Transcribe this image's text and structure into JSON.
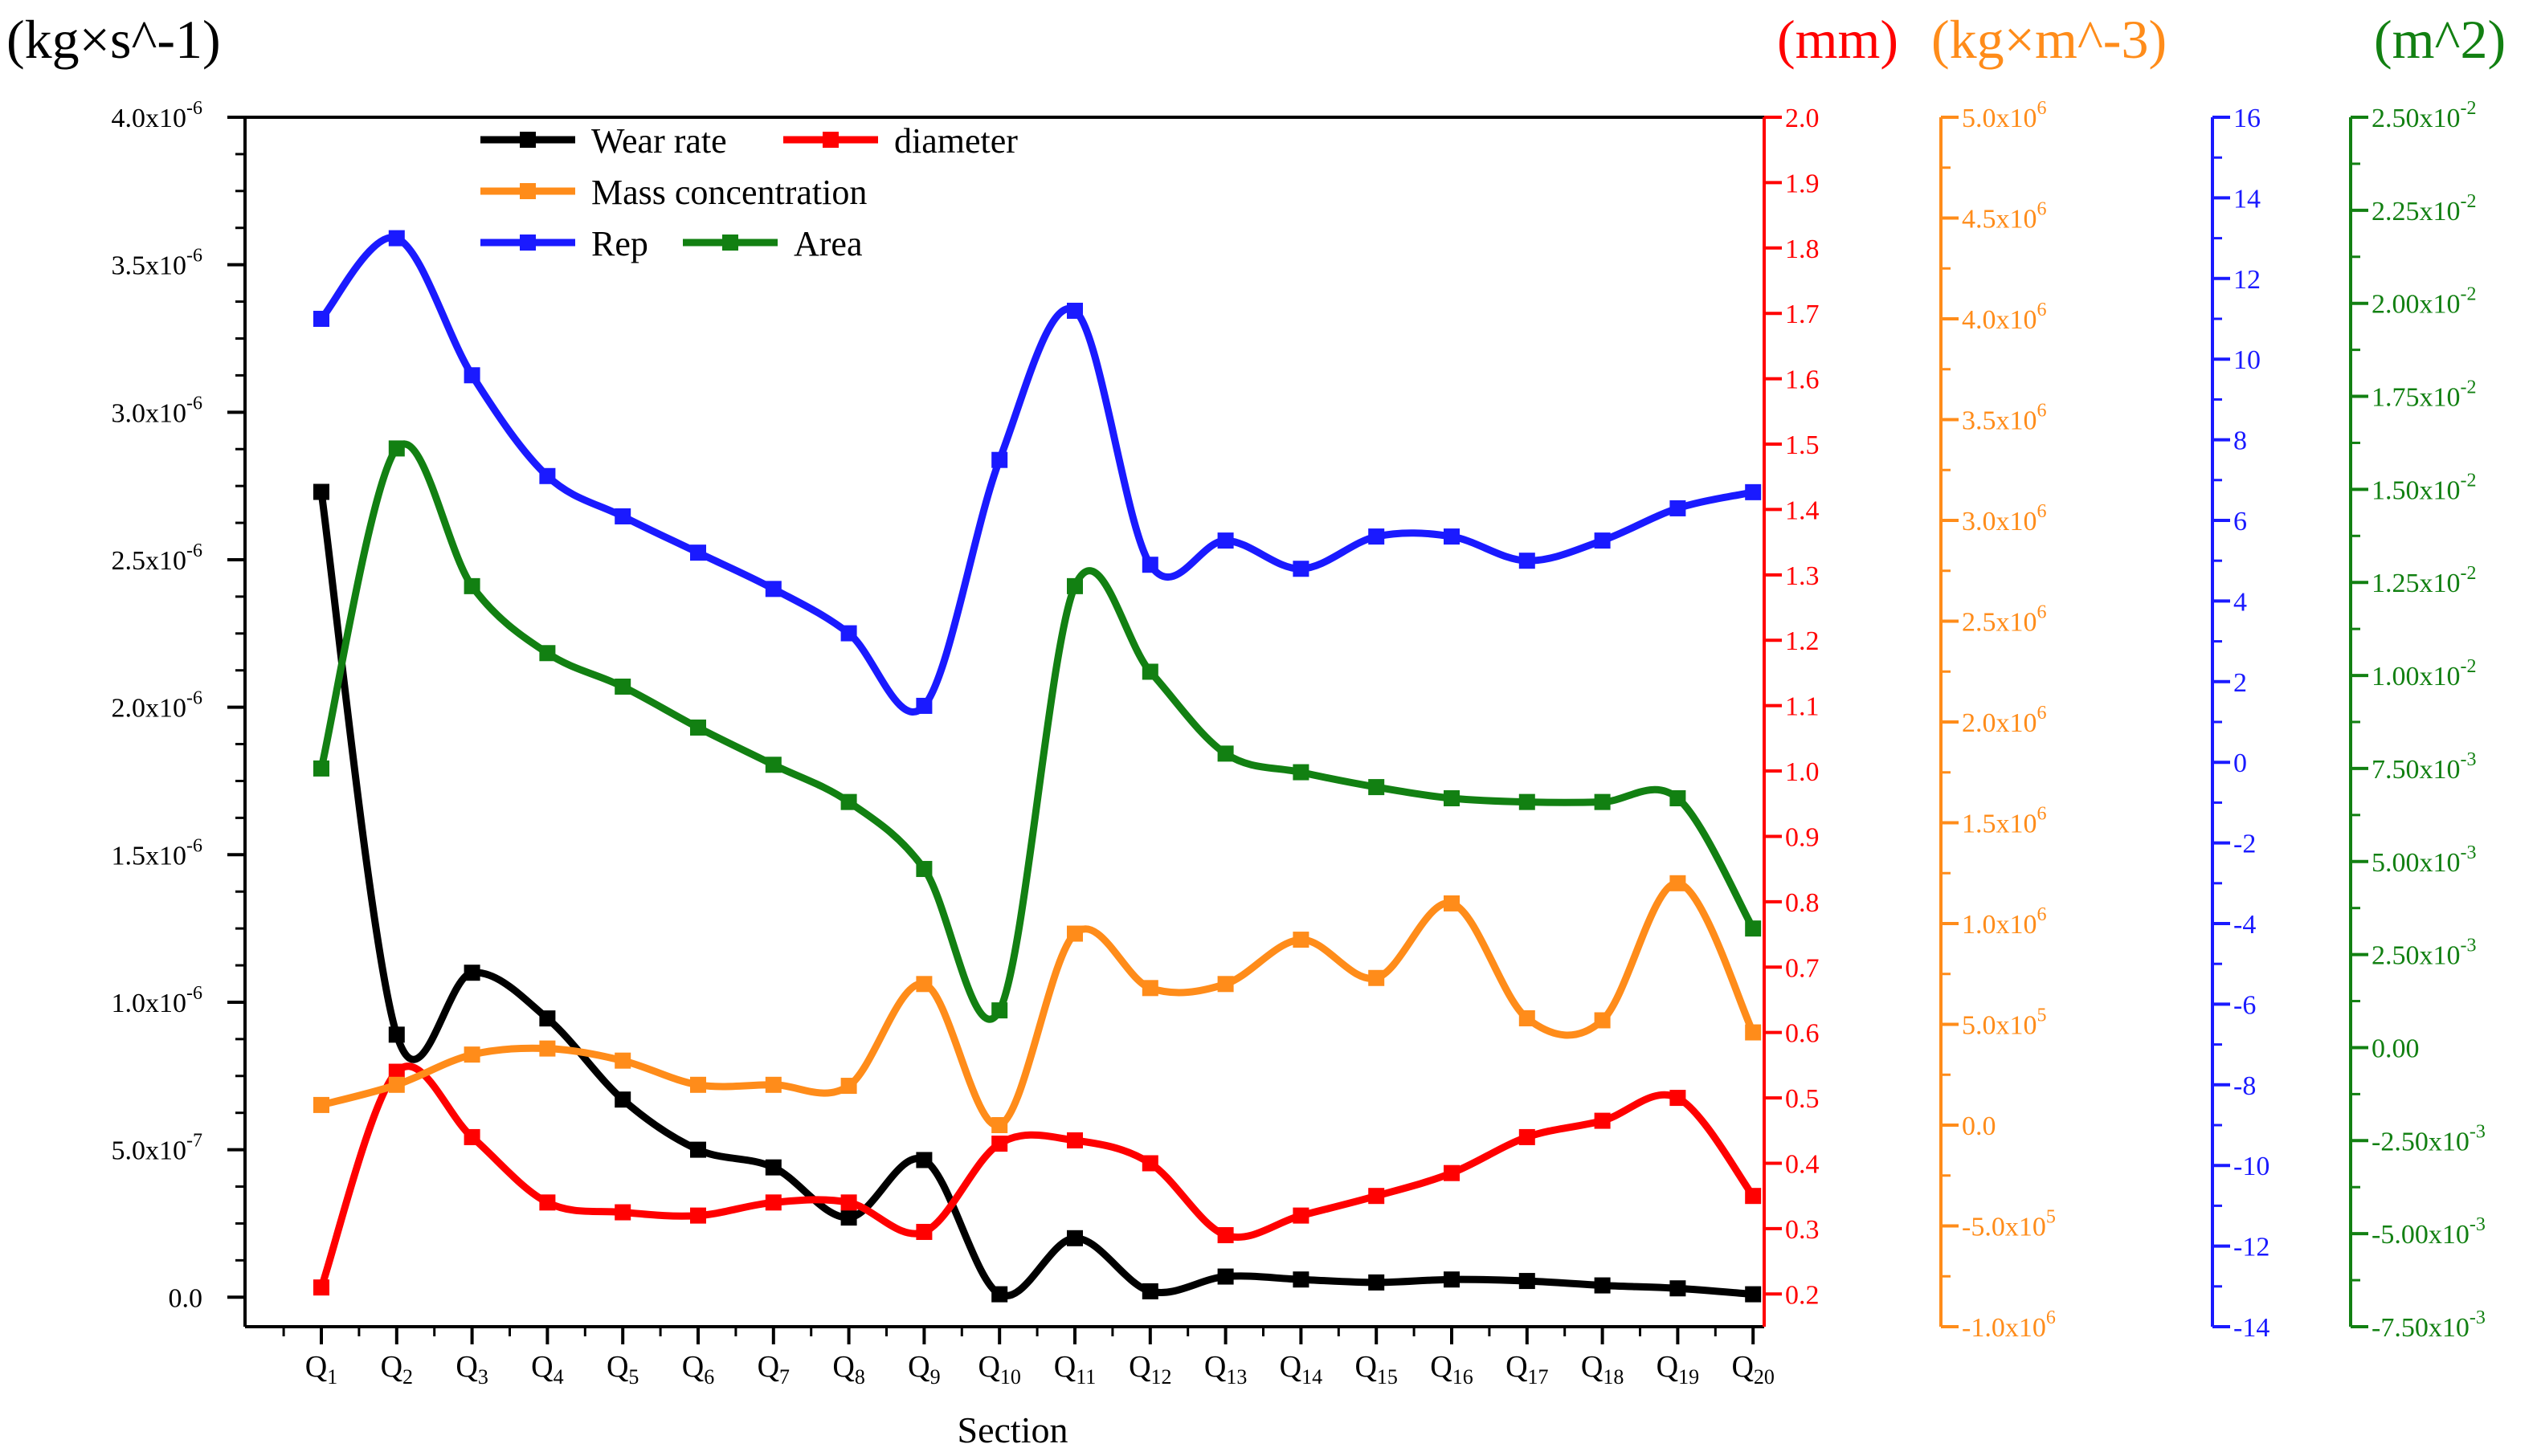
{
  "chart_data": {
    "type": "line",
    "xlabel": "Section",
    "categories": [
      {
        "base": "Q",
        "sub": "1"
      },
      {
        "base": "Q",
        "sub": "2"
      },
      {
        "base": "Q",
        "sub": "3"
      },
      {
        "base": "Q",
        "sub": "4"
      },
      {
        "base": "Q",
        "sub": "5"
      },
      {
        "base": "Q",
        "sub": "6"
      },
      {
        "base": "Q",
        "sub": "7"
      },
      {
        "base": "Q",
        "sub": "8"
      },
      {
        "base": "Q",
        "sub": "9"
      },
      {
        "base": "Q",
        "sub": "10"
      },
      {
        "base": "Q",
        "sub": "11"
      },
      {
        "base": "Q",
        "sub": "12"
      },
      {
        "base": "Q",
        "sub": "13"
      },
      {
        "base": "Q",
        "sub": "14"
      },
      {
        "base": "Q",
        "sub": "15"
      },
      {
        "base": "Q",
        "sub": "16"
      },
      {
        "base": "Q",
        "sub": "17"
      },
      {
        "base": "Q",
        "sub": "18"
      },
      {
        "base": "Q",
        "sub": "19"
      },
      {
        "base": "Q",
        "sub": "20"
      }
    ],
    "axes": [
      {
        "id": "wear",
        "side": "left",
        "color": "#000000",
        "unit": "(kg×s^-1)",
        "range": [
          -1e-07,
          4e-06
        ],
        "ticks": [
          {
            "v": 0,
            "t": "0.0"
          },
          {
            "v": 5e-07,
            "t": "5.0x10",
            "e": "-7"
          },
          {
            "v": 1e-06,
            "t": "1.0x10",
            "e": "-6"
          },
          {
            "v": 1.5e-06,
            "t": "1.5x10",
            "e": "-6"
          },
          {
            "v": 2e-06,
            "t": "2.0x10",
            "e": "-6"
          },
          {
            "v": 2.5e-06,
            "t": "2.5x10",
            "e": "-6"
          },
          {
            "v": 3e-06,
            "t": "3.0x10",
            "e": "-6"
          },
          {
            "v": 3.5e-06,
            "t": "3.5x10",
            "e": "-6"
          },
          {
            "v": 4e-06,
            "t": "4.0x10",
            "e": "-6"
          }
        ]
      },
      {
        "id": "diameter",
        "side": "right",
        "color": "#ff0000",
        "unit": "(mm)",
        "range": [
          0.15,
          2.0
        ],
        "ticks": [
          {
            "v": 0.2,
            "t": "0.2"
          },
          {
            "v": 0.3,
            "t": "0.3"
          },
          {
            "v": 0.4,
            "t": "0.4"
          },
          {
            "v": 0.5,
            "t": "0.5"
          },
          {
            "v": 0.6,
            "t": "0.6"
          },
          {
            "v": 0.7,
            "t": "0.7"
          },
          {
            "v": 0.8,
            "t": "0.8"
          },
          {
            "v": 0.9,
            "t": "0.9"
          },
          {
            "v": 1.0,
            "t": "1.0"
          },
          {
            "v": 1.1,
            "t": "1.1"
          },
          {
            "v": 1.2,
            "t": "1.2"
          },
          {
            "v": 1.3,
            "t": "1.3"
          },
          {
            "v": 1.4,
            "t": "1.4"
          },
          {
            "v": 1.5,
            "t": "1.5"
          },
          {
            "v": 1.6,
            "t": "1.6"
          },
          {
            "v": 1.7,
            "t": "1.7"
          },
          {
            "v": 1.8,
            "t": "1.8"
          },
          {
            "v": 1.9,
            "t": "1.9"
          },
          {
            "v": 2.0,
            "t": "2.0"
          }
        ]
      },
      {
        "id": "mass",
        "side": "right",
        "color": "#ff8c1a",
        "unit": "(kg×m^-3)",
        "range": [
          -1000000.0,
          5000000.0
        ],
        "ticks": [
          {
            "v": -1000000.0,
            "t": "-1.0x10",
            "e": "6"
          },
          {
            "v": -500000.0,
            "t": "-5.0x10",
            "e": "5"
          },
          {
            "v": 0,
            "t": "0.0"
          },
          {
            "v": 500000.0,
            "t": "5.0x10",
            "e": "5"
          },
          {
            "v": 1000000.0,
            "t": "1.0x10",
            "e": "6"
          },
          {
            "v": 1500000.0,
            "t": "1.5x10",
            "e": "6"
          },
          {
            "v": 2000000.0,
            "t": "2.0x10",
            "e": "6"
          },
          {
            "v": 2500000.0,
            "t": "2.5x10",
            "e": "6"
          },
          {
            "v": 3000000.0,
            "t": "3.0x10",
            "e": "6"
          },
          {
            "v": 3500000.0,
            "t": "3.5x10",
            "e": "6"
          },
          {
            "v": 4000000.0,
            "t": "4.0x10",
            "e": "6"
          },
          {
            "v": 4500000.0,
            "t": "4.5x10",
            "e": "6"
          },
          {
            "v": 5000000.0,
            "t": "5.0x10",
            "e": "6"
          }
        ]
      },
      {
        "id": "rep",
        "side": "right",
        "color": "#1a1aff",
        "unit": "",
        "range": [
          -14,
          16
        ],
        "ticks": [
          {
            "v": -14,
            "t": "-14"
          },
          {
            "v": -12,
            "t": "-12"
          },
          {
            "v": -10,
            "t": "-10"
          },
          {
            "v": -8,
            "t": "-8"
          },
          {
            "v": -6,
            "t": "-6"
          },
          {
            "v": -4,
            "t": "-4"
          },
          {
            "v": -2,
            "t": "-2"
          },
          {
            "v": 0,
            "t": "0"
          },
          {
            "v": 2,
            "t": "2"
          },
          {
            "v": 4,
            "t": "4"
          },
          {
            "v": 6,
            "t": "6"
          },
          {
            "v": 8,
            "t": "8"
          },
          {
            "v": 10,
            "t": "10"
          },
          {
            "v": 12,
            "t": "12"
          },
          {
            "v": 14,
            "t": "14"
          },
          {
            "v": 16,
            "t": "16"
          }
        ]
      },
      {
        "id": "area",
        "side": "right",
        "color": "#128012",
        "unit": "(m^2)",
        "range": [
          -0.0075,
          0.025
        ],
        "ticks": [
          {
            "v": -0.0075,
            "t": "-7.50x10",
            "e": "-3"
          },
          {
            "v": -0.005,
            "t": "-5.00x10",
            "e": "-3"
          },
          {
            "v": -0.0025,
            "t": "-2.50x10",
            "e": "-3"
          },
          {
            "v": 0,
            "t": "0.00"
          },
          {
            "v": 0.0025,
            "t": "2.50x10",
            "e": "-3"
          },
          {
            "v": 0.005,
            "t": "5.00x10",
            "e": "-3"
          },
          {
            "v": 0.0075,
            "t": "7.50x10",
            "e": "-3"
          },
          {
            "v": 0.01,
            "t": "1.00x10",
            "e": "-2"
          },
          {
            "v": 0.0125,
            "t": "1.25x10",
            "e": "-2"
          },
          {
            "v": 0.015,
            "t": "1.50x10",
            "e": "-2"
          },
          {
            "v": 0.0175,
            "t": "1.75x10",
            "e": "-2"
          },
          {
            "v": 0.02,
            "t": "2.00x10",
            "e": "-2"
          },
          {
            "v": 0.0225,
            "t": "2.25x10",
            "e": "-2"
          },
          {
            "v": 0.025,
            "t": "2.50x10",
            "e": "-2"
          }
        ]
      }
    ],
    "series": [
      {
        "name": "Wear rate",
        "axis": "wear",
        "color": "#000000",
        "values": [
          2.73e-06,
          8.9e-07,
          1.1e-06,
          9.45e-07,
          6.7e-07,
          5e-07,
          4.4e-07,
          2.7e-07,
          4.65e-07,
          1e-08,
          2e-07,
          2e-08,
          7e-08,
          6e-08,
          5e-08,
          6e-08,
          5.5e-08,
          4e-08,
          3e-08,
          1e-08
        ]
      },
      {
        "name": "diameter",
        "axis": "diameter",
        "color": "#ff0000",
        "values": [
          0.21,
          0.54,
          0.44,
          0.34,
          0.325,
          0.32,
          0.34,
          0.34,
          0.295,
          0.43,
          0.435,
          0.4,
          0.29,
          0.32,
          0.35,
          0.385,
          0.44,
          0.465,
          0.5,
          0.35
        ]
      },
      {
        "name": "Mass concentration",
        "axis": "mass",
        "color": "#ff8c1a",
        "values": [
          100000.0,
          200000.0,
          350000.0,
          380000.0,
          320000.0,
          200000.0,
          200000.0,
          195000.0,
          700000.0,
          0.0,
          950000.0,
          680000.0,
          700000.0,
          920000.0,
          730000.0,
          1100000.0,
          530000.0,
          520000.0,
          1200000.0,
          460000.0
        ]
      },
      {
        "name": "Rep",
        "axis": "rep",
        "color": "#1a1aff",
        "values": [
          11.0,
          13.0,
          9.6,
          7.1,
          6.1,
          5.2,
          4.3,
          3.2,
          1.4,
          7.5,
          11.2,
          4.9,
          5.5,
          4.8,
          5.6,
          5.6,
          5.0,
          5.5,
          6.3,
          6.7
        ]
      },
      {
        "name": "Area",
        "axis": "area",
        "color": "#128012",
        "values": [
          0.0075,
          0.0161,
          0.0124,
          0.0106,
          0.0097,
          0.0086,
          0.0076,
          0.0066,
          0.0048,
          0.001,
          0.0124,
          0.0101,
          0.0079,
          0.0074,
          0.007,
          0.0067,
          0.0066,
          0.0066,
          0.0067,
          0.0032
        ]
      }
    ]
  }
}
